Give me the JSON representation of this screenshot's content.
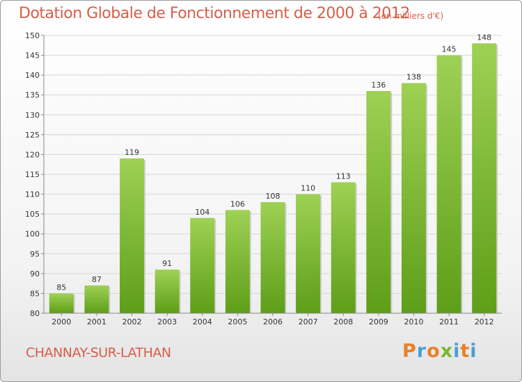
{
  "chart_data": {
    "type": "bar",
    "title": "Dotation Globale de Fonctionnement de 2000 à 2012",
    "subtitle": "(en milliers d'€)",
    "categories": [
      "2000",
      "2001",
      "2002",
      "2003",
      "2004",
      "2005",
      "2006",
      "2007",
      "2008",
      "2009",
      "2010",
      "2011",
      "2012"
    ],
    "values": [
      85,
      87,
      119,
      91,
      104,
      106,
      108,
      110,
      113,
      136,
      138,
      145,
      148
    ],
    "ylim": [
      80,
      150
    ],
    "yticks": [
      80,
      85,
      90,
      95,
      100,
      105,
      110,
      115,
      120,
      125,
      130,
      135,
      140,
      145,
      150
    ],
    "grid": true,
    "bar_color": "#7fc034"
  },
  "footer": {
    "city": "CHANNAY-SUR-LATHAN",
    "logo": "Proxiti",
    "logo_colors": [
      "#e8812a",
      "#4a9fd6",
      "#e8812a",
      "#7ab530",
      "#4a9fd6",
      "#e8812a",
      "#4a9fd6"
    ]
  }
}
